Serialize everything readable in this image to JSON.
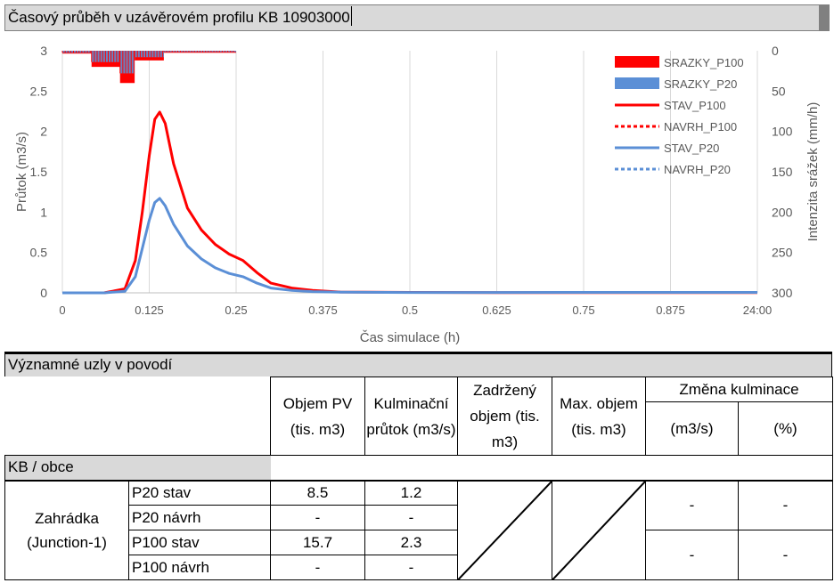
{
  "chart": {
    "title": "Časový průběh v uzávěrovém profilu KB 10903000"
  },
  "chart_data": {
    "type": "line",
    "xlabel": "Čas simulace (h)",
    "ylabel": "Průtok (m3/s)",
    "y2label": "Intenzita srážek (mm/h)",
    "x_tick_labels": [
      "0",
      "0.125",
      "0.25",
      "0.375",
      "0.5",
      "0.625",
      "0.75",
      "0.875",
      "24:00"
    ],
    "y_ticks": [
      "0",
      "0.5",
      "1",
      "1.5",
      "2",
      "2.5",
      "3"
    ],
    "y2_ticks": [
      "0",
      "50",
      "100",
      "150",
      "200",
      "250",
      "300"
    ],
    "ylim": [
      0,
      3
    ],
    "y2lim": [
      0,
      300
    ],
    "y2_reversed": true,
    "grid": "vertical",
    "legend": "top-right",
    "precipitation": [
      {
        "name": "SRAZKY_P100",
        "color": "#ff0000",
        "bars": [
          [
            0,
            0.042,
            3.5
          ],
          [
            0.042,
            0.083,
            20
          ],
          [
            0.083,
            0.104,
            40
          ],
          [
            0.104,
            0.146,
            12
          ],
          [
            0.146,
            0.25,
            2.5
          ]
        ]
      },
      {
        "name": "SRAZKY_P20",
        "color": "#5b8fd6",
        "bars": [
          [
            0,
            0.042,
            2.5
          ],
          [
            0.042,
            0.083,
            14
          ],
          [
            0.083,
            0.104,
            28
          ],
          [
            0.104,
            0.146,
            8
          ],
          [
            0.146,
            0.25,
            1.5
          ]
        ]
      }
    ],
    "series": [
      {
        "name": "STAV_P100",
        "color": "#ff0000",
        "style": "solid",
        "x": [
          0,
          0.06,
          0.09,
          0.105,
          0.115,
          0.125,
          0.133,
          0.14,
          0.148,
          0.16,
          0.18,
          0.2,
          0.22,
          0.24,
          0.26,
          0.28,
          0.3,
          0.33,
          0.36,
          0.4,
          0.5,
          0.625,
          0.75,
          0.875,
          1.0
        ],
        "y": [
          0,
          0,
          0.05,
          0.4,
          1.0,
          1.7,
          2.15,
          2.24,
          2.1,
          1.6,
          1.05,
          0.78,
          0.6,
          0.48,
          0.4,
          0.25,
          0.12,
          0.06,
          0.03,
          0.01,
          0.005,
          0.003,
          0.002,
          0.002,
          0.002
        ]
      },
      {
        "name": "NAVRH_P100",
        "color": "#ff0000",
        "style": "dashed",
        "x": [],
        "y": []
      },
      {
        "name": "STAV_P20",
        "color": "#5b8fd6",
        "style": "solid",
        "x": [
          0,
          0.06,
          0.09,
          0.105,
          0.115,
          0.125,
          0.133,
          0.14,
          0.148,
          0.16,
          0.18,
          0.2,
          0.22,
          0.24,
          0.26,
          0.28,
          0.3,
          0.33,
          0.36,
          0.4,
          0.5,
          0.625,
          0.75,
          0.875,
          1.0
        ],
        "y": [
          0,
          0,
          0.02,
          0.2,
          0.55,
          0.9,
          1.12,
          1.17,
          1.08,
          0.85,
          0.58,
          0.42,
          0.31,
          0.24,
          0.2,
          0.12,
          0.06,
          0.03,
          0.015,
          0.008,
          0.004,
          0.004,
          0.005,
          0.005,
          0.005
        ]
      },
      {
        "name": "NAVRH_P20",
        "color": "#5b8fd6",
        "style": "dashed",
        "x": [],
        "y": []
      }
    ]
  },
  "table": {
    "section_title": "Významné uzly v povodí",
    "headers": {
      "volume": "Objem PV (tis. m3)",
      "peak": "Kulminační průtok (m3/s)",
      "retained": "Zadržený objem (tis. m3)",
      "maxvol": "Max. objem (tis. m3)",
      "change": "Změna kulminace",
      "change_abs": "(m3/s)",
      "change_pct": "(%)"
    },
    "group_label": "KB / obce",
    "node_name": "Zahrádka (Junction-1)",
    "rows": [
      {
        "variant": "P20 stav",
        "volume": "8.5",
        "peak": "1.2"
      },
      {
        "variant": "P20 návrh",
        "volume": "-",
        "peak": "-"
      },
      {
        "variant": "P100 stav",
        "volume": "15.7",
        "peak": "2.3"
      },
      {
        "variant": "P100 návrh",
        "volume": "-",
        "peak": "-"
      }
    ],
    "change_p20": {
      "abs": "-",
      "pct": "-"
    },
    "change_p100": {
      "abs": "-",
      "pct": "-"
    }
  }
}
